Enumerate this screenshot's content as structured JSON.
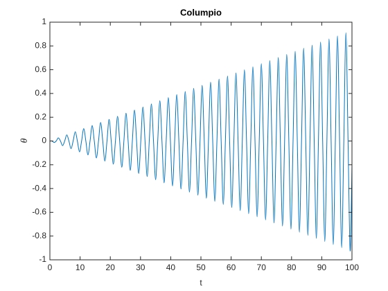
{
  "chart_data": {
    "type": "line",
    "title": "Columpio",
    "xlabel": "t",
    "ylabel": "θ",
    "x": [
      0,
      0.7,
      1.4,
      2.1,
      2.8,
      3.5,
      4.2,
      4.9,
      5.6,
      6.3,
      7,
      7.7,
      8.4,
      9.1,
      9.8,
      10.5,
      11.2,
      11.9,
      12.6,
      13.3,
      14,
      14.7,
      15.4,
      16.1,
      16.8,
      17.5,
      18.2,
      18.9,
      19.6,
      20.3,
      21,
      21.7,
      22.4,
      23.1,
      23.8,
      24.5,
      25.2,
      25.9,
      26.6,
      27.3,
      28,
      28.7,
      29.4,
      30.1,
      30.8,
      31.5,
      32.2,
      32.9,
      33.6,
      34.3,
      35,
      35.7,
      36.4,
      37.1,
      37.8,
      38.5,
      39.2,
      39.9,
      40.6,
      41.3,
      42,
      42.7,
      43.4,
      44.1,
      44.8,
      45.5,
      46.2,
      46.9,
      47.6,
      48.3,
      49,
      49.7,
      50.4,
      51.1,
      51.8,
      52.5,
      53.2,
      53.9,
      54.6,
      55.3,
      56,
      56.7,
      57.4,
      58.1,
      58.8,
      59.5,
      60.2,
      60.9,
      61.6,
      62.3,
      63,
      63.7,
      64.4,
      65.1,
      65.8,
      66.5,
      67.2,
      67.9,
      68.6,
      69.3,
      70,
      70.7,
      71.4,
      72.1,
      72.8,
      73.5,
      74.2,
      74.9,
      75.6,
      76.3,
      77,
      77.7,
      78.4,
      79.1,
      79.8,
      80.5,
      81.2,
      81.9,
      82.6,
      83.3,
      84,
      84.7,
      85.4,
      86.1,
      86.8,
      87.5,
      88.2,
      88.9,
      89.6,
      90.3,
      91,
      91.7,
      92.4,
      93.1,
      93.8,
      94.5,
      95.2,
      95.9,
      96.6,
      97.3,
      98,
      98.7,
      99.4,
      100
    ],
    "series": [
      {
        "color": "#0072bd",
        "values": [
          0,
          0,
          -0.013,
          0,
          0.026,
          0,
          -0.039,
          0,
          0.052,
          0,
          -0.065,
          0,
          0.078,
          0,
          -0.091,
          0,
          0.104,
          0,
          -0.117,
          0,
          0.13,
          0,
          -0.143,
          0,
          0.156,
          0,
          -0.169,
          0,
          0.182,
          0,
          -0.195,
          0,
          0.208,
          0,
          -0.221,
          0,
          0.234,
          0,
          -0.247,
          0,
          0.26,
          0,
          -0.273,
          0,
          0.286,
          0,
          -0.299,
          0,
          0.312,
          0,
          -0.326,
          0,
          0.339,
          0,
          -0.352,
          0,
          0.365,
          0,
          -0.378,
          0,
          0.391,
          0,
          -0.404,
          0,
          0.417,
          0,
          -0.43,
          0,
          0.443,
          0,
          -0.456,
          0,
          0.469,
          0,
          -0.482,
          0,
          0.495,
          0,
          -0.508,
          0,
          0.521,
          0,
          -0.534,
          0,
          0.547,
          0,
          -0.56,
          0,
          0.573,
          0,
          -0.586,
          0,
          0.599,
          0,
          -0.612,
          0,
          0.625,
          0,
          -0.638,
          0,
          0.651,
          0,
          -0.664,
          0,
          0.677,
          0,
          -0.69,
          0,
          0.703,
          0,
          -0.716,
          0,
          0.729,
          0,
          -0.742,
          0,
          0.755,
          0,
          -0.768,
          0,
          0.781,
          0,
          -0.794,
          0,
          0.807,
          0,
          -0.82,
          0,
          0.833,
          0,
          -0.846,
          0,
          0.859,
          0,
          -0.872,
          0,
          0.885,
          0,
          -0.898,
          0,
          0.911,
          0,
          -0.924,
          -0.2
        ]
      }
    ],
    "xlim": [
      0,
      100
    ],
    "xticks": [
      0,
      10,
      20,
      30,
      40,
      50,
      60,
      70,
      80,
      90,
      100
    ],
    "ylim": [
      -1,
      1
    ],
    "yticks": [
      -1,
      -0.8,
      -0.6,
      -0.4,
      -0.2,
      0,
      0.2,
      0.4,
      0.6,
      0.8,
      1
    ]
  }
}
